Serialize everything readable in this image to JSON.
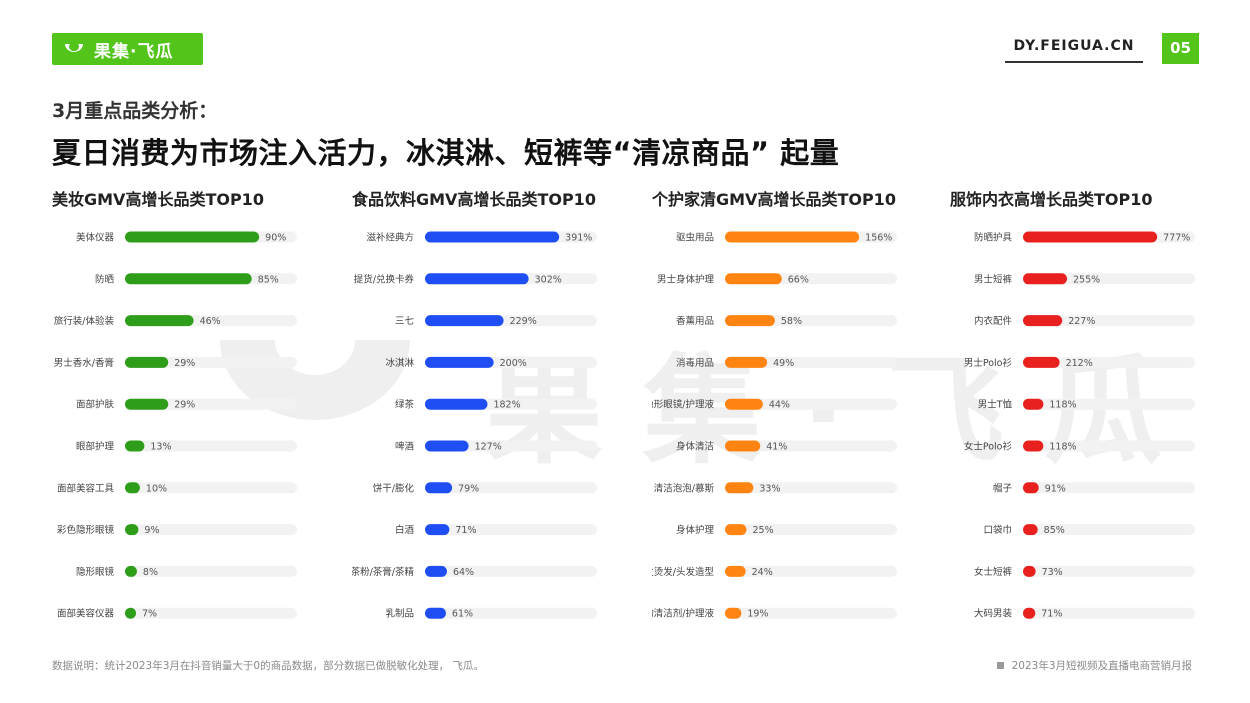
{
  "brand": {
    "logo_text": "果集·飞瓜",
    "site": "DY.FEIGUA.CN",
    "page_number": "05",
    "accent_color": "#52c41a"
  },
  "header": {
    "subtitle": "3月重点品类分析：",
    "title": "夏日消费为市场注入活力，冰淇淋、短裤等“清凉商品” 起量"
  },
  "watermark": {
    "text": "果集·飞瓜"
  },
  "chart_data": [
    {
      "type": "bar",
      "orientation": "horizontal",
      "title": "美妆GMV高增长品类TOP10",
      "color": "#2e9e1a",
      "categories": [
        "美体仪器",
        "防晒",
        "旅行装/体验装",
        "男士香水/香膏",
        "面部护肤",
        "眼部护理",
        "面部美容工具",
        "彩色隐形眼镜",
        "隐形眼镜",
        "面部美容仪器"
      ],
      "values": [
        90,
        85,
        46,
        29,
        29,
        13,
        10,
        9,
        8,
        7
      ],
      "labels": [
        "90%",
        "85%",
        "46%",
        "29%",
        "29%",
        "13%",
        "10%",
        "9%",
        "8%",
        "7%"
      ]
    },
    {
      "type": "bar",
      "orientation": "horizontal",
      "title": "食品饮料GMV高增长品类TOP10",
      "color": "#1f4ef5",
      "categories": [
        "滋补经典方",
        "提货/兑换卡券",
        "三七",
        "冰淇淋",
        "绿茶",
        "啤酒",
        "饼干/膨化",
        "白酒",
        "茶粉/茶膏/茶精",
        "乳制品"
      ],
      "values": [
        391,
        302,
        229,
        200,
        182,
        127,
        79,
        71,
        64,
        61
      ],
      "labels": [
        "391%",
        "302%",
        "229%",
        "200%",
        "182%",
        "127%",
        "79%",
        "71%",
        "64%",
        "61%"
      ]
    },
    {
      "type": "bar",
      "orientation": "horizontal",
      "title": "个护家清GMV高增长品类TOP10",
      "color": "#ff8412",
      "categories": [
        "驱虫用品",
        "男士身体护理",
        "香薰用品",
        "消毒用品",
        "隐形眼镜/护理液",
        "身体清洁",
        "清洁泡泡/慕斯",
        "身体护理",
        "染发烫发/头发造型",
        "衣物清洁剂/护理液"
      ],
      "values": [
        156,
        66,
        58,
        49,
        44,
        41,
        33,
        25,
        24,
        19
      ],
      "labels": [
        "156%",
        "66%",
        "58%",
        "49%",
        "44%",
        "41%",
        "33%",
        "25%",
        "24%",
        "19%"
      ]
    },
    {
      "type": "bar",
      "orientation": "horizontal",
      "title": "服饰内衣高增长品类TOP10",
      "color": "#e8211f",
      "categories": [
        "防晒护具",
        "男士短裤",
        "内衣配件",
        "男士Polo衫",
        "男士T恤",
        "女士Polo衫",
        "帽子",
        "口袋巾",
        "女士短裤",
        "大码男装"
      ],
      "values": [
        777,
        255,
        227,
        212,
        118,
        118,
        91,
        85,
        73,
        71
      ],
      "labels": [
        "777%",
        "255%",
        "227%",
        "212%",
        "118%",
        "118%",
        "91%",
        "85%",
        "73%",
        "71%"
      ]
    }
  ],
  "footer": {
    "note": "数据说明：统计2023年3月在抖音销量大于0的商品数据，部分数据已做脱敏化处理， 飞瓜。",
    "report": "2023年3月短视频及直播电商营销月报"
  }
}
